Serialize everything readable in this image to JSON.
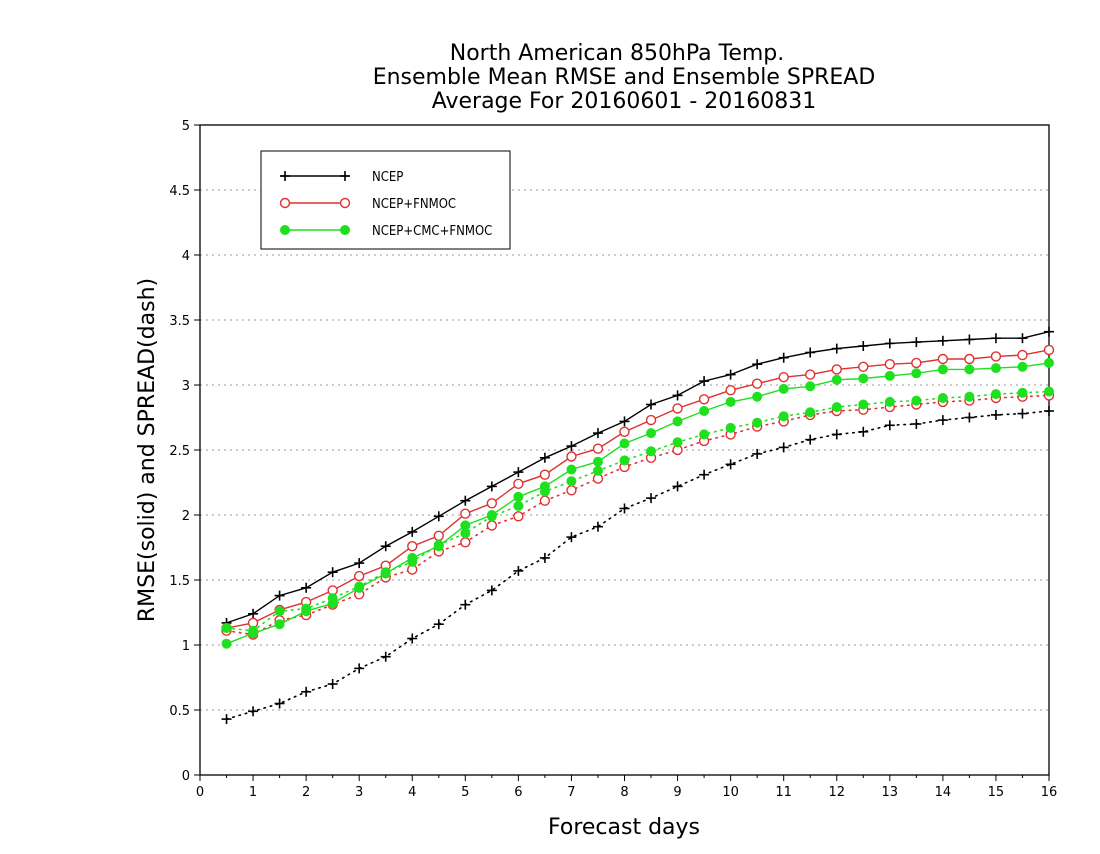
{
  "chart_data": {
    "type": "line",
    "title_lines": [
      "North American 850hPa Temp.",
      "Ensemble Mean RMSE and Ensemble SPREAD",
      "Average For 20160601 - 20160831"
    ],
    "xlabel": "Forecast days",
    "ylabel": "RMSE(solid) and SPREAD(dash)",
    "xlim": [
      0,
      16
    ],
    "ylim": [
      0,
      5
    ],
    "x_ticks": [
      0,
      1,
      2,
      3,
      4,
      5,
      6,
      7,
      8,
      9,
      10,
      11,
      12,
      13,
      14,
      15,
      16
    ],
    "y_ticks": [
      0,
      0.5,
      1,
      1.5,
      2,
      2.5,
      3,
      3.5,
      4,
      4.5,
      5
    ],
    "y_tick_labels": [
      "0",
      "0.5",
      "1",
      "1.5",
      "2",
      "2.5",
      "3",
      "3.5",
      "4",
      "4.5",
      "5"
    ],
    "grid": "horizontal dotted",
    "legend_position": "top-left",
    "x": [
      0.5,
      1,
      1.5,
      2,
      2.5,
      3,
      3.5,
      4,
      4.5,
      5,
      5.5,
      6,
      6.5,
      7,
      7.5,
      8,
      8.5,
      9,
      9.5,
      10,
      10.5,
      11,
      11.5,
      12,
      12.5,
      13,
      13.5,
      14,
      14.5,
      15,
      15.5,
      16
    ],
    "series": [
      {
        "name": "NCEP",
        "color": "#000000",
        "marker": "plus",
        "rmse": [
          1.17,
          1.24,
          1.38,
          1.44,
          1.56,
          1.63,
          1.76,
          1.87,
          1.99,
          2.11,
          2.22,
          2.33,
          2.44,
          2.53,
          2.63,
          2.72,
          2.85,
          2.92,
          3.03,
          3.08,
          3.16,
          3.21,
          3.25,
          3.28,
          3.3,
          3.32,
          3.33,
          3.34,
          3.35,
          3.36,
          3.36,
          3.41
        ],
        "spread": [
          0.43,
          0.49,
          0.55,
          0.64,
          0.7,
          0.82,
          0.91,
          1.05,
          1.16,
          1.31,
          1.42,
          1.57,
          1.67,
          1.83,
          1.91,
          2.05,
          2.13,
          2.22,
          2.31,
          2.39,
          2.47,
          2.52,
          2.58,
          2.62,
          2.64,
          2.69,
          2.7,
          2.73,
          2.75,
          2.77,
          2.78,
          2.8
        ]
      },
      {
        "name": "NCEP+FNMOC",
        "color": "#e03030",
        "marker": "open-circle",
        "rmse": [
          1.13,
          1.17,
          1.27,
          1.33,
          1.42,
          1.53,
          1.61,
          1.76,
          1.84,
          2.01,
          2.09,
          2.24,
          2.31,
          2.45,
          2.51,
          2.64,
          2.73,
          2.82,
          2.89,
          2.96,
          3.01,
          3.06,
          3.08,
          3.12,
          3.14,
          3.16,
          3.17,
          3.2,
          3.2,
          3.22,
          3.23,
          3.27
        ],
        "spread": [
          1.11,
          1.08,
          1.19,
          1.23,
          1.31,
          1.39,
          1.52,
          1.58,
          1.72,
          1.79,
          1.92,
          1.99,
          2.11,
          2.19,
          2.28,
          2.37,
          2.44,
          2.5,
          2.57,
          2.62,
          2.68,
          2.72,
          2.77,
          2.8,
          2.81,
          2.83,
          2.85,
          2.87,
          2.88,
          2.9,
          2.91,
          2.92
        ]
      },
      {
        "name": "NCEP+CMC+FNMOC",
        "color": "#1ee01e",
        "marker": "filled-circle",
        "rmse": [
          1.01,
          1.09,
          1.16,
          1.26,
          1.32,
          1.44,
          1.55,
          1.67,
          1.76,
          1.92,
          2.0,
          2.14,
          2.22,
          2.35,
          2.41,
          2.55,
          2.63,
          2.72,
          2.8,
          2.87,
          2.91,
          2.97,
          2.99,
          3.04,
          3.05,
          3.07,
          3.09,
          3.12,
          3.12,
          3.13,
          3.14,
          3.17
        ],
        "spread": [
          1.13,
          1.11,
          1.26,
          1.28,
          1.36,
          1.45,
          1.56,
          1.64,
          1.77,
          1.86,
          1.99,
          2.07,
          2.18,
          2.26,
          2.34,
          2.42,
          2.49,
          2.56,
          2.62,
          2.67,
          2.71,
          2.76,
          2.79,
          2.83,
          2.85,
          2.87,
          2.88,
          2.9,
          2.91,
          2.93,
          2.94,
          2.95
        ]
      }
    ]
  }
}
